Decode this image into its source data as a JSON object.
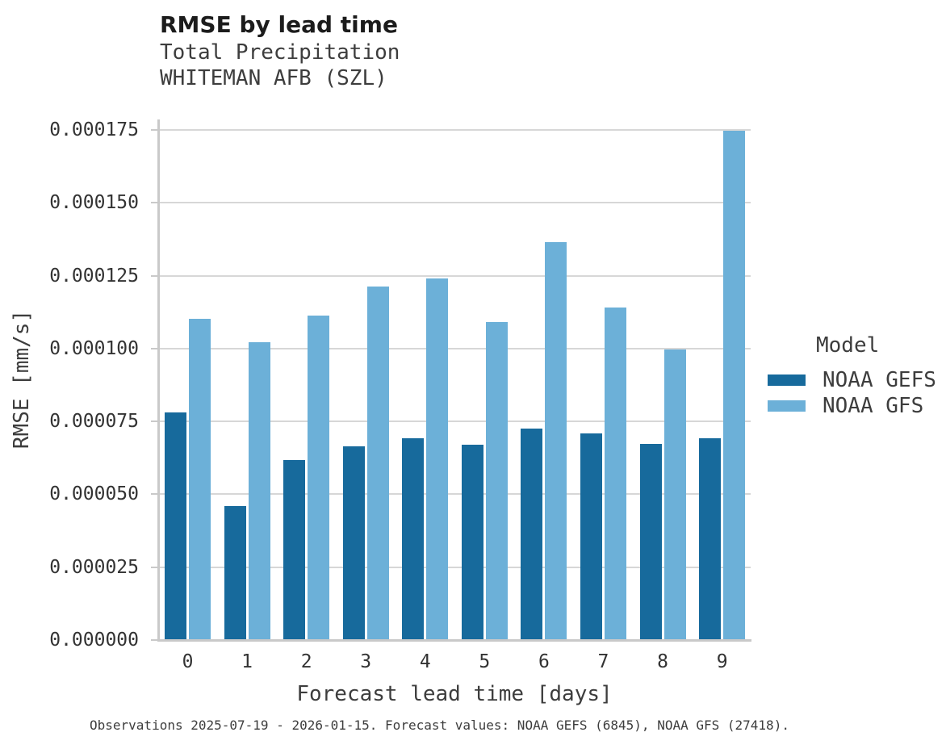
{
  "figure": {
    "title": "RMSE by lead time",
    "subtitle_line1": "Total Precipitation",
    "subtitle_line2": "WHITEMAN AFB (SZL)",
    "footer": "Observations 2025-07-19 - 2026-01-15. Forecast values: NOAA GEFS (6845), NOAA GFS (27418)."
  },
  "colors": {
    "gefs_dark_blue": "#176a9c",
    "gfs_light_blue": "#6cb0d8",
    "gridline": "#d7d7d7",
    "spine": "#c9c9c9",
    "text": "#3d3d3d"
  },
  "chart_data": {
    "type": "bar",
    "title": "RMSE by lead time",
    "subtitle_lines": [
      "Total Precipitation",
      "WHITEMAN AFB (SZL)"
    ],
    "categories": [
      "0",
      "1",
      "2",
      "3",
      "4",
      "5",
      "6",
      "7",
      "8",
      "9"
    ],
    "series": [
      {
        "name": "NOAA GEFS",
        "color": "#176a9c",
        "values": [
          7.78e-05,
          4.56e-05,
          6.15e-05,
          6.62e-05,
          6.9e-05,
          6.68e-05,
          7.22e-05,
          7.07e-05,
          6.7e-05,
          6.9e-05
        ]
      },
      {
        "name": "NOAA GFS",
        "color": "#6cb0d8",
        "values": [
          0.00011,
          0.0001018,
          0.000111,
          0.0001209,
          0.0001238,
          0.0001087,
          0.0001362,
          0.0001137,
          9.93e-05,
          0.0001744
        ]
      }
    ],
    "xlabel": "Forecast lead time [days]",
    "ylabel": "RMSE [mm/s]",
    "yticks": [
      0.0,
      2.5e-05,
      5e-05,
      7.5e-05,
      0.0001,
      0.000125,
      0.00015,
      0.000175
    ],
    "ytick_labels": [
      "0.000000",
      "0.000025",
      "0.000050",
      "0.000075",
      "0.000100",
      "0.000125",
      "0.000150",
      "0.000175"
    ],
    "ylim": [
      0,
      0.0001786
    ],
    "grid": true,
    "legend_title": "Model",
    "legend_position": "right",
    "caption": "Observations 2025-07-19 - 2026-01-15. Forecast values: NOAA GEFS (6845), NOAA GFS (27418)."
  }
}
